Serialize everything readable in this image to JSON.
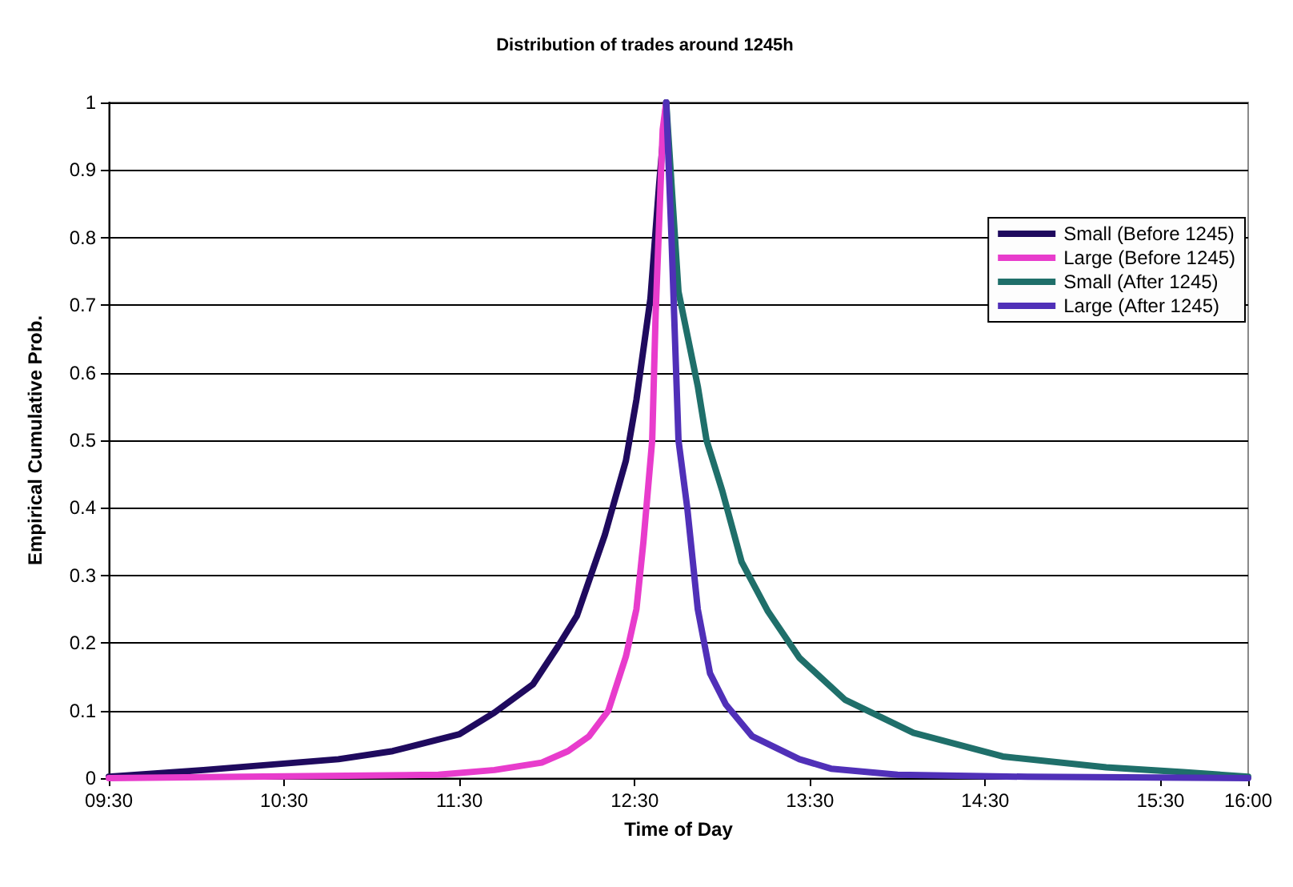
{
  "chart_data": {
    "type": "line",
    "title": "Distribution of trades around 1245h",
    "xlabel": "Time of Day",
    "ylabel": "Empirical Cumulative Prob.",
    "xlim": [
      9.5,
      16
    ],
    "xticks": [
      {
        "value": 9.5,
        "label": "09:30"
      },
      {
        "value": 10.5,
        "label": "10:30"
      },
      {
        "value": 11.5,
        "label": "11:30"
      },
      {
        "value": 12.5,
        "label": "12:30"
      },
      {
        "value": 13.5,
        "label": "13:30"
      },
      {
        "value": 14.5,
        "label": "14:30"
      },
      {
        "value": 15.5,
        "label": "15:30"
      },
      {
        "value": 16,
        "label": "16:00"
      }
    ],
    "ylim": [
      0,
      1
    ],
    "yticks": [
      0,
      0.1,
      0.2,
      0.3,
      0.4,
      0.5,
      0.6,
      0.7,
      0.8,
      0.9,
      1
    ],
    "grid": "y",
    "legend": "top right",
    "marker": "none",
    "line_style": "solid",
    "series": [
      {
        "name": "Small (Before 1245)",
        "color": "#1f0a5e",
        "x": [
          9.5,
          10.04,
          10.81,
          11.12,
          11.5,
          11.7,
          11.92,
          12.06,
          12.17,
          12.33,
          12.45,
          12.51,
          12.59,
          12.64,
          12.68
        ],
        "values": [
          0.002,
          0.012,
          0.028,
          0.04,
          0.065,
          0.097,
          0.139,
          0.194,
          0.24,
          0.36,
          0.47,
          0.56,
          0.71,
          0.88,
          1
        ]
      },
      {
        "name": "Large (Before 1245)",
        "color": "#e83ccc",
        "x": [
          9.5,
          11.38,
          11.7,
          11.97,
          12.12,
          12.24,
          12.35,
          12.45,
          12.51,
          12.55,
          12.6,
          12.62,
          12.66,
          12.68
        ],
        "values": [
          0,
          0.005,
          0.012,
          0.023,
          0.04,
          0.062,
          0.1,
          0.18,
          0.25,
          0.35,
          0.5,
          0.69,
          0.96,
          1
        ]
      },
      {
        "name": "Small (After 1245)",
        "color": "#1f6f6a",
        "x": [
          12.68,
          12.72,
          12.75,
          12.86,
          12.91,
          13.0,
          13.11,
          13.26,
          13.44,
          13.7,
          14.09,
          14.6,
          15.19,
          15.63,
          16
        ],
        "values": [
          1,
          0.84,
          0.72,
          0.58,
          0.5,
          0.425,
          0.32,
          0.247,
          0.178,
          0.116,
          0.067,
          0.032,
          0.016,
          0.009,
          0.002
        ]
      },
      {
        "name": "Large (After 1245)",
        "color": "#5030b8",
        "x": [
          12.68,
          12.71,
          12.75,
          12.8,
          12.86,
          12.93,
          13.02,
          13.17,
          13.44,
          13.62,
          14.0,
          14.74,
          16
        ],
        "values": [
          1,
          0.8,
          0.5,
          0.4,
          0.25,
          0.155,
          0.109,
          0.062,
          0.028,
          0.014,
          0.005,
          0.002,
          0
        ]
      }
    ]
  }
}
